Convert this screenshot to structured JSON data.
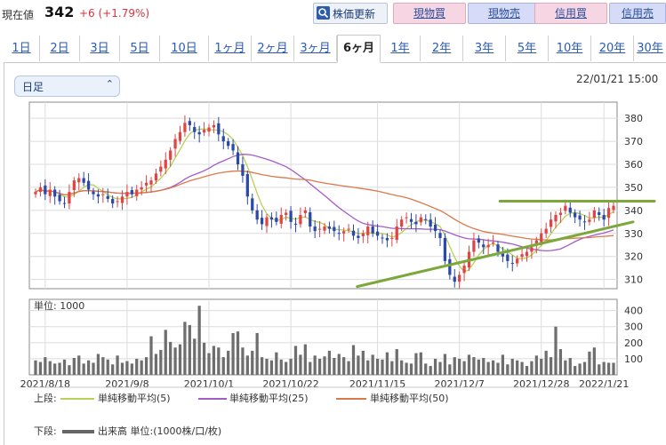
{
  "header": {
    "price_label": "現在値",
    "price_value": "342",
    "price_change": "+6 (+1.79%)",
    "refresh_label": "株価更新",
    "buttons": [
      "現物買",
      "現物売",
      "信用買",
      "信用売"
    ]
  },
  "tabs": [
    "1日",
    "2日",
    "3日",
    "5日",
    "10日",
    "1ヶ月",
    "2ヶ月",
    "3ヶ月",
    "6ヶ月",
    "1年",
    "2年",
    "3年",
    "5年",
    "10年",
    "20年",
    "30年"
  ],
  "active_tab": "6ヶ月",
  "controls": {
    "interval": "日足",
    "timestamp": "22/01/21 15:00"
  },
  "volume_unit": "単位: 1000",
  "legend": {
    "upper_label": "上段:",
    "lower_label": "下段:",
    "ma": [
      {
        "name": "単純移動平均(5)",
        "color": "#b7d15a"
      },
      {
        "name": "単純移動平均(25)",
        "color": "#a55bc9"
      },
      {
        "name": "単純移動平均(50)",
        "color": "#d97a4a"
      }
    ],
    "volume": {
      "name": "出来高 単位:(1000株/口/枚)",
      "color": "#666666"
    }
  },
  "colors": {
    "up": "#e04545",
    "down": "#2b49a6",
    "trendline": "#7aa83a"
  },
  "chart_data": {
    "type": "candlestick",
    "x_tick_labels": [
      "2021/8/18",
      "2021/9/8",
      "2021/10/1",
      "2021/10/22",
      "2021/11/15",
      "2021/12/7",
      "2021/12/28",
      "2022/1/21"
    ],
    "price_ticks": [
      310,
      320,
      330,
      340,
      350,
      360,
      370,
      380
    ],
    "price_range": [
      306,
      387
    ],
    "volume_ticks": [
      100,
      200,
      300,
      400
    ],
    "volume_range": [
      0,
      470
    ],
    "close": [
      348,
      350,
      347,
      349,
      346,
      344,
      343,
      348,
      353,
      354,
      352,
      349,
      347,
      346,
      347,
      345,
      343,
      344,
      346,
      348,
      347,
      349,
      350,
      352,
      353,
      356,
      359,
      362,
      366,
      371,
      374,
      378,
      377,
      374,
      373,
      375,
      376,
      377,
      373,
      370,
      368,
      366,
      360,
      355,
      346,
      340,
      336,
      334,
      337,
      336,
      335,
      338,
      339,
      335,
      334,
      338,
      340,
      333,
      331,
      332,
      333,
      332,
      331,
      330,
      331,
      332,
      329,
      328,
      330,
      333,
      330,
      329,
      328,
      327,
      328,
      333,
      336,
      337,
      335,
      334,
      337,
      336,
      333,
      331,
      328,
      318,
      312,
      309,
      312,
      316,
      322,
      327,
      326,
      324,
      325,
      326,
      322,
      320,
      318,
      317,
      319,
      321,
      322,
      324,
      327,
      330,
      332,
      336,
      338,
      339,
      342,
      339,
      337,
      336,
      335,
      336,
      340,
      338,
      336,
      341,
      342
    ],
    "volume": [
      90,
      80,
      110,
      85,
      70,
      75,
      95,
      60,
      105,
      120,
      70,
      90,
      75,
      130,
      110,
      95,
      65,
      120,
      75,
      85,
      70,
      100,
      90,
      110,
      240,
      130,
      155,
      280,
      205,
      170,
      190,
      330,
      310,
      225,
      430,
      200,
      135,
      180,
      170,
      110,
      150,
      260,
      270,
      170,
      120,
      150,
      260,
      110,
      100,
      90,
      140,
      95,
      80,
      100,
      180,
      125,
      190,
      80,
      120,
      100,
      115,
      150,
      105,
      130,
      110,
      85,
      185,
      120,
      150,
      90,
      125,
      100,
      95,
      140,
      85,
      160,
      90,
      75,
      70,
      135,
      140,
      70,
      55,
      100,
      80,
      130,
      65,
      110,
      100,
      85,
      125,
      110,
      95,
      105,
      80,
      90,
      75,
      125,
      65,
      100,
      90,
      80,
      55,
      85,
      120,
      100,
      150,
      110,
      300,
      160,
      90,
      105,
      55,
      70,
      80,
      145,
      170,
      65,
      80,
      75,
      75
    ],
    "ma_periods": [
      5,
      25,
      50
    ],
    "trendlines": [
      {
        "from": [
          "2021/11/15",
          308
        ],
        "to": [
          "2022/1/21",
          333
        ]
      },
      {
        "from": [
          "2021/12/21",
          344
        ],
        "to": [
          "2022/1/21",
          344
        ]
      }
    ]
  }
}
